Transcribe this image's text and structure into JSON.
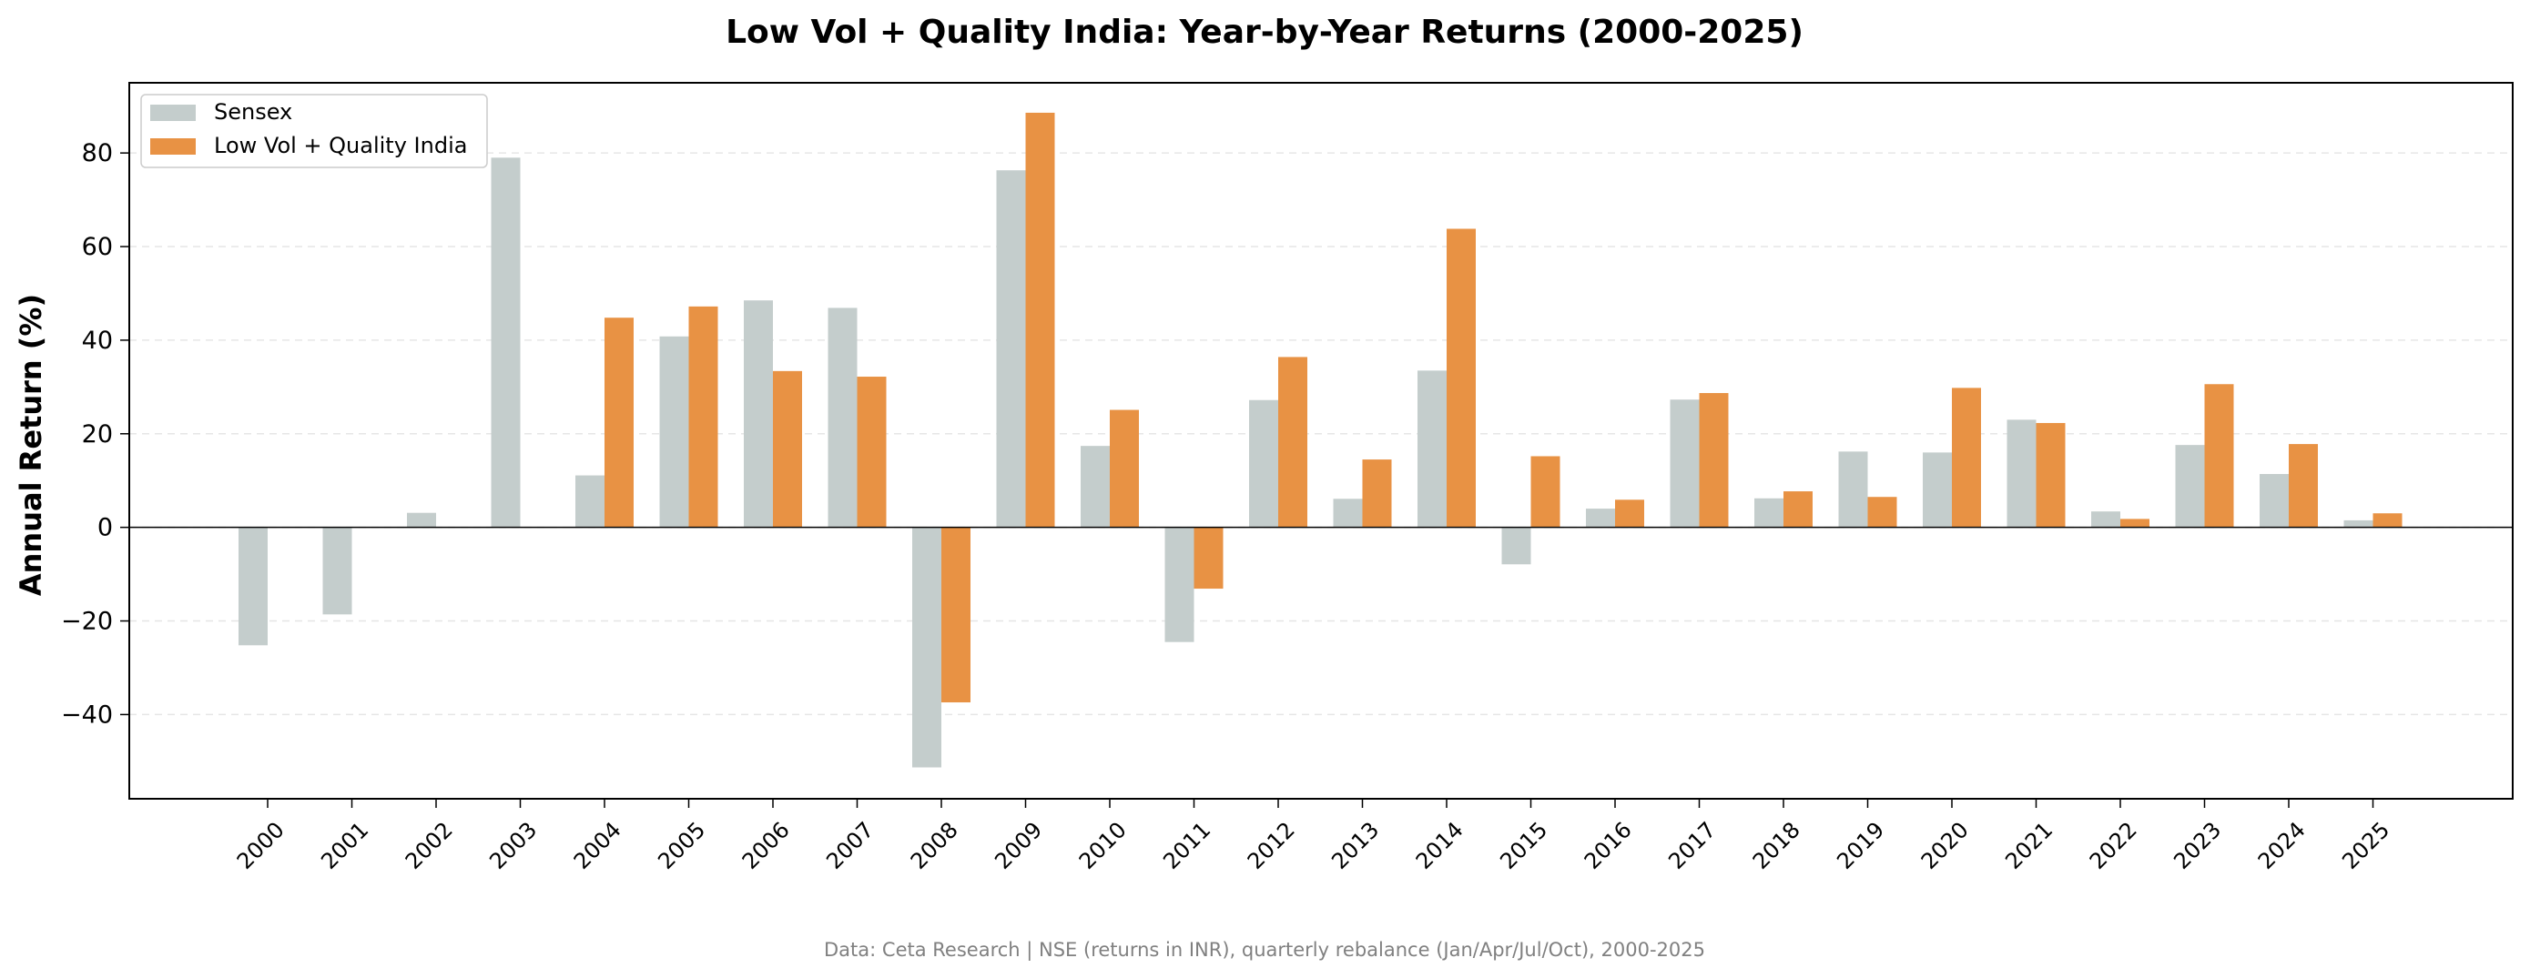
{
  "chart_data": {
    "type": "bar",
    "title": "Low Vol + Quality India: Year-by-Year Returns (2000-2025)",
    "xlabel": "",
    "ylabel": "Annual Return (%)",
    "ylim": [
      -58,
      95
    ],
    "yticks": [
      -40,
      -20,
      0,
      20,
      40,
      60,
      80
    ],
    "grid": true,
    "legend_position": "top-left",
    "categories": [
      "2000",
      "2001",
      "2002",
      "2003",
      "2004",
      "2005",
      "2006",
      "2007",
      "2008",
      "2009",
      "2010",
      "2011",
      "2012",
      "2013",
      "2014",
      "2015",
      "2016",
      "2017",
      "2018",
      "2019",
      "2020",
      "2021",
      "2022",
      "2023",
      "2024",
      "2025"
    ],
    "series": [
      {
        "name": "Sensex",
        "color": "#c4cdcc",
        "values": [
          -25.2,
          -18.6,
          3.1,
          79.0,
          11.1,
          40.8,
          48.5,
          46.9,
          -51.3,
          76.3,
          17.4,
          -24.5,
          27.2,
          6.1,
          33.5,
          -7.9,
          4.0,
          27.3,
          6.2,
          16.2,
          16.0,
          23.0,
          3.4,
          17.6,
          11.4,
          1.5
        ]
      },
      {
        "name": "Low Vol + Quality India",
        "color": "#e89244",
        "values": [
          null,
          null,
          null,
          null,
          44.8,
          47.2,
          33.4,
          32.2,
          -37.4,
          88.6,
          25.1,
          -13.1,
          36.4,
          14.5,
          63.8,
          15.2,
          5.9,
          28.7,
          7.7,
          6.5,
          29.8,
          22.3,
          1.8,
          30.6,
          17.8,
          3.0
        ]
      }
    ],
    "footnote": "Data: Ceta Research | NSE (returns in INR), quarterly rebalance (Jan/Apr/Jul/Oct), 2000-2025"
  }
}
